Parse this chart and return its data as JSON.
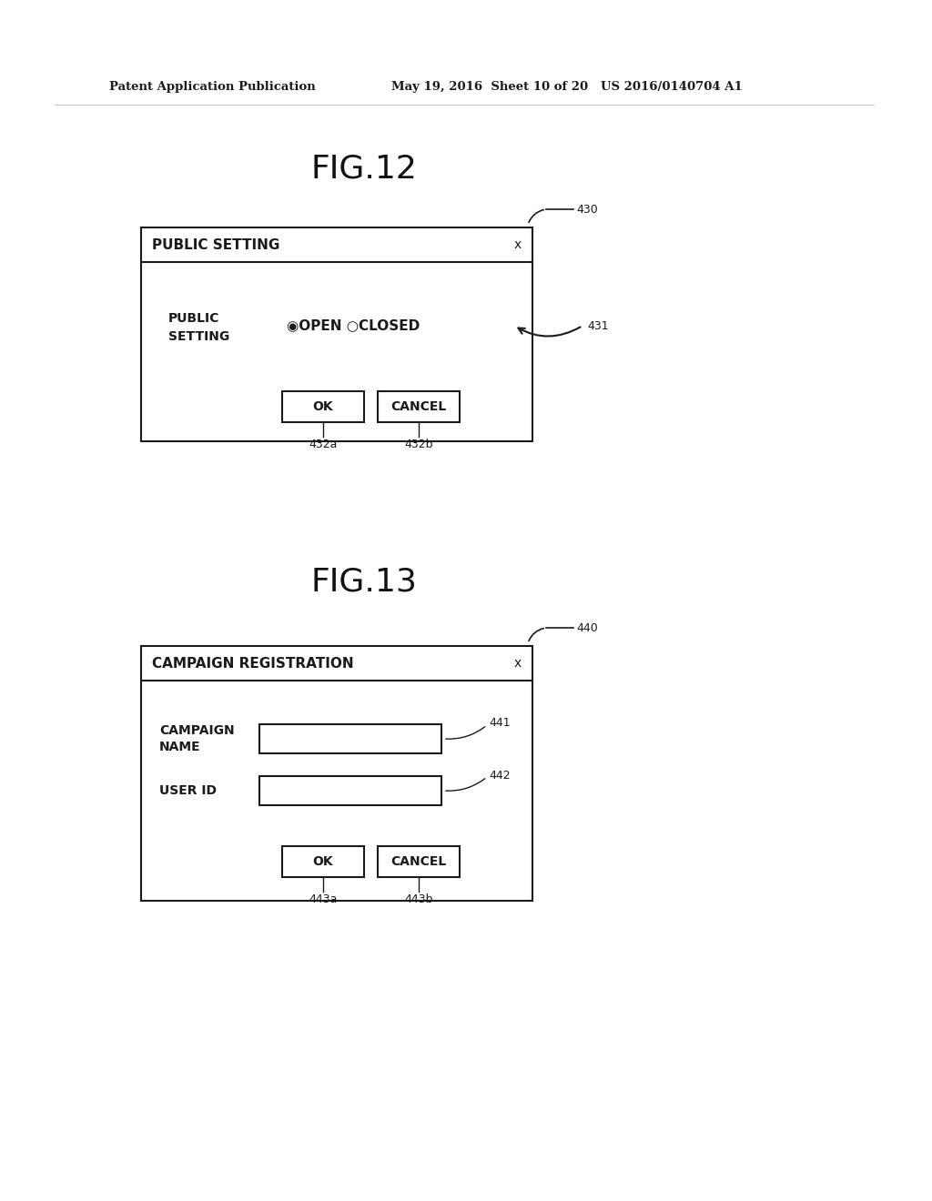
{
  "bg_color": "#ffffff",
  "header_left": "Patent Application Publication",
  "header_mid": "May 19, 2016  Sheet 10 of 20",
  "header_right": "US 2016/0140704 A1",
  "fig12_title": "FIG.12",
  "fig13_title": "FIG.13",
  "fig12": {
    "label": "430",
    "title_bar_text": "PUBLIC SETTING",
    "title_bar_close": "x",
    "content_label": "PUBLIC\nSETTING",
    "radio_text": "◉OPEN ○CLOSED",
    "arrow_label": "431",
    "btn1_text": "OK",
    "btn2_text": "CANCEL",
    "btn1_label": "432a",
    "btn2_label": "432b"
  },
  "fig13": {
    "label": "440",
    "title_bar_text": "CAMPAIGN REGISTRATION",
    "title_bar_close": "x",
    "field1_label": "CAMPAIGN\nNAME",
    "field2_label": "USER ID",
    "arrow1_label": "441",
    "arrow2_label": "442",
    "btn1_text": "OK",
    "btn2_text": "CANCEL",
    "btn1_label": "443a",
    "btn2_label": "443b"
  }
}
